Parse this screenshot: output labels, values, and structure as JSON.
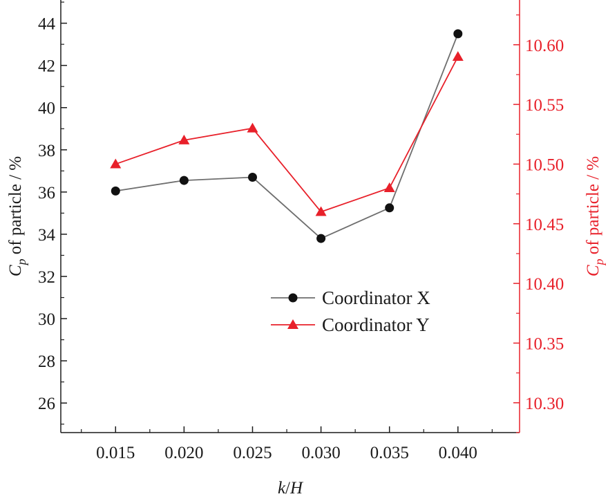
{
  "chart_data": {
    "type": "line",
    "x": [
      0.015,
      0.02,
      0.025,
      0.03,
      0.035,
      0.04
    ],
    "x_tick_labels": [
      "0.015",
      "0.020",
      "0.025",
      "0.030",
      "0.035",
      "0.040"
    ],
    "xlabel": {
      "italic_1": "k",
      "plain": "/",
      "italic_2": "H"
    },
    "xlim": [
      0.011,
      0.0445
    ],
    "left_axis": {
      "ylim": [
        24.6,
        45.1
      ],
      "ticks": [
        26,
        28,
        30,
        32,
        34,
        36,
        38,
        40,
        42,
        44
      ],
      "tick_labels": [
        "26",
        "28",
        "30",
        "32",
        "34",
        "36",
        "38",
        "40",
        "42",
        "44"
      ],
      "label": {
        "symbol": "C",
        "subscript": "p",
        "rest": " of particle / %"
      },
      "color": "#1a1a1a"
    },
    "right_axis": {
      "ylim": [
        10.275,
        10.6375
      ],
      "ticks": [
        10.3,
        10.35,
        10.4,
        10.45,
        10.5,
        10.55,
        10.6
      ],
      "tick_labels": [
        "10.30",
        "10.35",
        "10.40",
        "10.45",
        "10.50",
        "10.55",
        "10.60"
      ],
      "label": {
        "symbol": "C",
        "subscript": "p",
        "rest": " of particle / %"
      },
      "color": "#e8202a"
    },
    "series": [
      {
        "name": "Coordinator X",
        "axis": "left",
        "marker": "circle",
        "line_color": "#6e6e6e",
        "marker_color": "#111111",
        "values": [
          36.05,
          36.55,
          36.7,
          33.8,
          35.25,
          43.5
        ]
      },
      {
        "name": "Coordinator Y",
        "axis": "right",
        "marker": "triangle",
        "line_color": "#e8202a",
        "marker_color": "#e8202a",
        "values": [
          10.5,
          10.52,
          10.53,
          10.46,
          10.48,
          10.59
        ]
      }
    ],
    "legend_position": "center",
    "grid": false
  }
}
